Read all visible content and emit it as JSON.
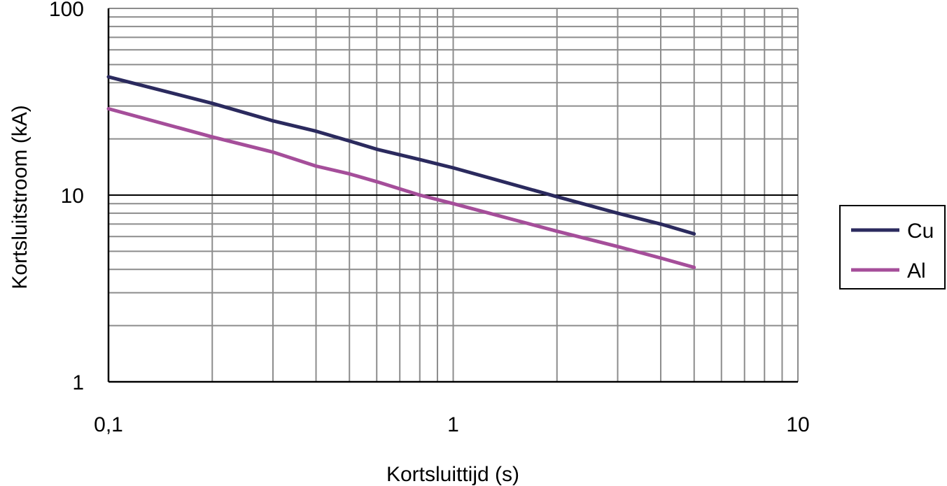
{
  "chart_data": {
    "type": "line",
    "xlabel": "Kortsluittijd (s)",
    "ylabel": "Kortsluitstroom (kA)",
    "xscale": "log",
    "yscale": "log",
    "xlim": [
      0.1,
      10
    ],
    "ylim": [
      1,
      100
    ],
    "xticks": [
      {
        "value": 0.1,
        "label": "0,1"
      },
      {
        "value": 1,
        "label": "1"
      },
      {
        "value": 10,
        "label": "10"
      }
    ],
    "yticks": [
      {
        "value": 1,
        "label": "1"
      },
      {
        "value": 10,
        "label": "10"
      },
      {
        "value": 100,
        "label": "100"
      }
    ],
    "grid": true,
    "legend": "right",
    "series": [
      {
        "name": "Cu",
        "color": "#2b2a5e",
        "x": [
          0.1,
          0.2,
          0.3,
          0.4,
          0.5,
          0.6,
          0.8,
          1,
          2,
          3,
          4,
          5
        ],
        "y": [
          43,
          31,
          25,
          22,
          19.5,
          17.6,
          15.5,
          14,
          9.8,
          8,
          7,
          6.2
        ]
      },
      {
        "name": "Al",
        "color": "#a54e9a",
        "x": [
          0.1,
          0.2,
          0.3,
          0.4,
          0.5,
          0.6,
          0.8,
          1,
          2,
          3,
          4,
          5
        ],
        "y": [
          29,
          20.5,
          17,
          14.3,
          13,
          11.8,
          10,
          9,
          6.4,
          5.3,
          4.6,
          4.1
        ]
      }
    ]
  }
}
